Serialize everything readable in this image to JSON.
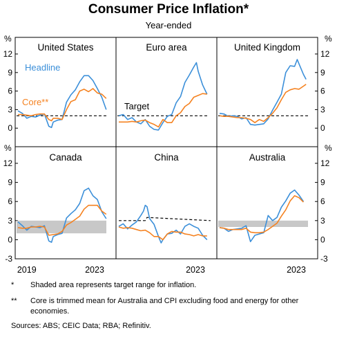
{
  "title": "Consumer Price Inflation*",
  "subtitle": "Year-ended",
  "colors": {
    "headline": "#3b8fd9",
    "core": "#f58220",
    "target": "#000000",
    "band": "#c8c8c8"
  },
  "axis": {
    "unit": "%",
    "y_ticks": [
      "12",
      "9",
      "6",
      "3",
      "0",
      "-3"
    ],
    "x_ticks": [
      "2019",
      "2023"
    ]
  },
  "footnotes": [
    {
      "mark": "*",
      "text": "Shaded area represents target range for inflation."
    },
    {
      "mark": "**",
      "text": "Core is trimmed mean for Australia and CPI excluding food and energy for other economies."
    }
  ],
  "sources": "Sources: ABS; CEIC Data; RBA; Refinitiv.",
  "chart_data": {
    "type": "line",
    "x_unit": "year",
    "ylim": [
      -3,
      12
    ],
    "xlim": [
      2018.5,
      2023.9
    ],
    "panels": [
      {
        "name": "United States",
        "headline_label": "Headline",
        "core_label": "Core**",
        "target": 2,
        "series": [
          {
            "key": "headline",
            "x": [
              2018.5,
              2018.75,
              2019.0,
              2019.25,
              2019.5,
              2019.75,
              2020.0,
              2020.25,
              2020.4,
              2020.5,
              2020.75,
              2021.0,
              2021.25,
              2021.5,
              2021.75,
              2022.0,
              2022.25,
              2022.5,
              2022.75,
              2023.0,
              2023.25,
              2023.5
            ],
            "y": [
              2.8,
              2.4,
              1.6,
              1.9,
              1.8,
              2.1,
              2.3,
              0.3,
              0.1,
              1.0,
              1.3,
              1.4,
              4.2,
              5.4,
              6.2,
              7.5,
              8.5,
              8.5,
              7.7,
              6.4,
              5.0,
              3.0
            ]
          },
          {
            "key": "core",
            "x": [
              2018.5,
              2018.75,
              2019.0,
              2019.25,
              2019.5,
              2019.75,
              2020.0,
              2020.25,
              2020.4,
              2020.5,
              2020.75,
              2021.0,
              2021.25,
              2021.5,
              2021.75,
              2022.0,
              2022.25,
              2022.5,
              2022.75,
              2023.0,
              2023.25,
              2023.5
            ],
            "y": [
              2.2,
              2.2,
              2.1,
              2.0,
              2.2,
              2.3,
              2.3,
              1.4,
              1.2,
              1.6,
              1.6,
              1.4,
              3.0,
              4.3,
              4.6,
              6.0,
              6.3,
              5.9,
              6.4,
              5.7,
              5.5,
              4.8
            ]
          }
        ]
      },
      {
        "name": "Euro area",
        "target_label": "Target",
        "target": 2,
        "series": [
          {
            "key": "headline",
            "x": [
              2018.5,
              2018.75,
              2019.0,
              2019.25,
              2019.5,
              2019.75,
              2020.0,
              2020.25,
              2020.5,
              2020.75,
              2021.0,
              2021.25,
              2021.5,
              2021.75,
              2022.0,
              2022.25,
              2022.5,
              2022.75,
              2022.9,
              2023.0,
              2023.25,
              2023.5
            ],
            "y": [
              2.0,
              2.2,
              1.4,
              1.7,
              1.0,
              0.7,
              1.4,
              0.3,
              -0.2,
              -0.3,
              0.9,
              1.9,
              2.2,
              4.1,
              5.1,
              7.4,
              8.6,
              9.9,
              10.6,
              9.2,
              7.0,
              5.5
            ]
          },
          {
            "key": "core",
            "x": [
              2018.5,
              2018.75,
              2019.0,
              2019.25,
              2019.5,
              2019.75,
              2020.0,
              2020.25,
              2020.5,
              2020.75,
              2021.0,
              2021.25,
              2021.5,
              2021.75,
              2022.0,
              2022.25,
              2022.5,
              2022.75,
              2023.0,
              2023.25,
              2023.5
            ],
            "y": [
              1.0,
              1.0,
              1.0,
              1.1,
              1.0,
              1.2,
              1.3,
              0.9,
              0.6,
              0.2,
              1.4,
              0.9,
              0.9,
              2.0,
              2.5,
              3.5,
              4.0,
              5.0,
              5.3,
              5.6,
              5.5
            ]
          }
        ]
      },
      {
        "name": "United Kingdom",
        "target": 2,
        "series": [
          {
            "key": "headline",
            "x": [
              2018.5,
              2018.75,
              2019.0,
              2019.25,
              2019.5,
              2019.75,
              2020.0,
              2020.25,
              2020.5,
              2020.75,
              2021.0,
              2021.25,
              2021.5,
              2021.75,
              2022.0,
              2022.25,
              2022.5,
              2022.75,
              2022.9,
              2023.0,
              2023.25,
              2023.4
            ],
            "y": [
              2.4,
              2.3,
              1.9,
              2.0,
              1.9,
              1.5,
              1.7,
              0.6,
              0.5,
              0.6,
              0.7,
              1.5,
              2.9,
              4.2,
              5.5,
              9.0,
              10.1,
              10.0,
              11.1,
              10.4,
              8.7,
              7.9
            ]
          },
          {
            "key": "core",
            "x": [
              2018.5,
              2018.75,
              2019.0,
              2019.25,
              2019.5,
              2019.75,
              2020.0,
              2020.25,
              2020.5,
              2020.75,
              2021.0,
              2021.25,
              2021.5,
              2021.75,
              2022.0,
              2022.25,
              2022.5,
              2022.75,
              2023.0,
              2023.25,
              2023.4
            ],
            "y": [
              2.0,
              1.9,
              1.9,
              1.8,
              1.7,
              1.7,
              1.6,
              1.4,
              0.9,
              1.4,
              1.1,
              1.7,
              2.4,
              3.3,
              4.6,
              5.8,
              6.2,
              6.4,
              6.3,
              6.8,
              7.1
            ]
          }
        ]
      },
      {
        "name": "Canada",
        "band": [
          1,
          3
        ],
        "series": [
          {
            "key": "headline",
            "x": [
              2018.5,
              2018.75,
              2019.0,
              2019.25,
              2019.5,
              2019.75,
              2020.0,
              2020.25,
              2020.4,
              2020.5,
              2020.75,
              2021.0,
              2021.25,
              2021.5,
              2021.75,
              2022.0,
              2022.25,
              2022.5,
              2022.75,
              2023.0,
              2023.25,
              2023.5
            ],
            "y": [
              2.8,
              2.2,
              1.5,
              2.1,
              2.0,
              1.9,
              2.2,
              -0.2,
              -0.4,
              0.5,
              0.8,
              1.0,
              3.4,
              4.1,
              4.7,
              5.7,
              7.7,
              8.1,
              6.9,
              6.3,
              4.4,
              3.3
            ]
          },
          {
            "key": "core",
            "x": [
              2018.5,
              2018.75,
              2019.0,
              2019.25,
              2019.5,
              2019.75,
              2020.0,
              2020.25,
              2020.5,
              2020.75,
              2021.0,
              2021.25,
              2021.5,
              2021.75,
              2022.0,
              2022.25,
              2022.5,
              2022.75,
              2023.0,
              2023.25,
              2023.5
            ],
            "y": [
              1.9,
              1.8,
              1.8,
              2.0,
              2.0,
              2.1,
              2.0,
              0.7,
              0.8,
              0.9,
              1.3,
              2.3,
              2.7,
              3.2,
              3.7,
              4.8,
              5.4,
              5.4,
              5.4,
              4.5,
              4.0
            ]
          }
        ]
      },
      {
        "name": "China",
        "target_path": {
          "x": [
            2018.5,
            2020.0,
            2020.1,
            2023.7
          ],
          "y": [
            3.0,
            3.0,
            3.5,
            3.0
          ]
        },
        "series": [
          {
            "key": "headline",
            "x": [
              2018.5,
              2018.75,
              2019.0,
              2019.25,
              2019.5,
              2019.75,
              2019.9,
              2020.0,
              2020.1,
              2020.25,
              2020.5,
              2020.75,
              2020.9,
              2021.0,
              2021.25,
              2021.5,
              2021.75,
              2022.0,
              2022.25,
              2022.5,
              2022.75,
              2023.0,
              2023.25,
              2023.5
            ],
            "y": [
              2.1,
              2.5,
              1.7,
              2.3,
              2.8,
              3.8,
              4.5,
              5.4,
              5.2,
              3.3,
              2.4,
              0.5,
              -0.5,
              0.0,
              0.9,
              1.0,
              1.5,
              0.9,
              2.1,
              2.5,
              2.1,
              1.8,
              0.7,
              0.0
            ]
          },
          {
            "key": "core",
            "x": [
              2018.5,
              2018.75,
              2019.0,
              2019.25,
              2019.5,
              2019.75,
              2020.0,
              2020.25,
              2020.5,
              2020.75,
              2021.0,
              2021.25,
              2021.5,
              2021.75,
              2022.0,
              2022.25,
              2022.5,
              2022.75,
              2023.0,
              2023.25,
              2023.5
            ],
            "y": [
              2.0,
              1.8,
              1.9,
              1.8,
              1.6,
              1.4,
              1.5,
              1.1,
              0.5,
              0.5,
              0.0,
              0.9,
              1.3,
              1.2,
              1.2,
              0.9,
              0.8,
              0.6,
              0.8,
              0.6,
              0.6
            ]
          }
        ]
      },
      {
        "name": "Australia",
        "band": [
          2,
          3
        ],
        "series": [
          {
            "key": "headline",
            "x": [
              2018.5,
              2018.75,
              2019.0,
              2019.25,
              2019.5,
              2019.75,
              2020.0,
              2020.25,
              2020.5,
              2020.75,
              2021.0,
              2021.25,
              2021.5,
              2021.75,
              2022.0,
              2022.25,
              2022.5,
              2022.75,
              2023.0,
              2023.25
            ],
            "y": [
              1.9,
              1.8,
              1.3,
              1.6,
              1.7,
              1.8,
              2.2,
              -0.3,
              0.7,
              0.9,
              1.1,
              3.8,
              3.0,
              3.5,
              5.1,
              6.1,
              7.3,
              7.8,
              7.0,
              6.0
            ]
          },
          {
            "key": "core",
            "x": [
              2018.5,
              2018.75,
              2019.0,
              2019.25,
              2019.5,
              2019.75,
              2020.0,
              2020.25,
              2020.5,
              2020.75,
              2021.0,
              2021.25,
              2021.5,
              2021.75,
              2022.0,
              2022.25,
              2022.5,
              2022.75,
              2023.0,
              2023.25
            ],
            "y": [
              1.9,
              1.8,
              1.6,
              1.6,
              1.6,
              1.6,
              1.8,
              1.2,
              1.1,
              1.1,
              1.2,
              1.6,
              2.1,
              2.6,
              3.7,
              4.7,
              6.1,
              6.9,
              6.6,
              5.9
            ]
          }
        ]
      }
    ]
  }
}
